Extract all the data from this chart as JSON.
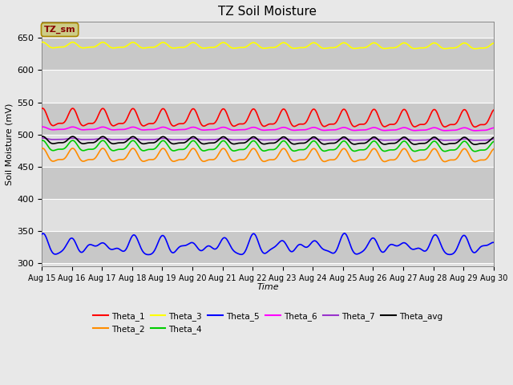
{
  "title": "TZ Soil Moisture",
  "xlabel": "Time",
  "ylabel": "Soil Moisture (mV)",
  "ylim": [
    295,
    675
  ],
  "yticks": [
    300,
    350,
    400,
    450,
    500,
    550,
    600,
    650
  ],
  "n_days": 15,
  "n_points": 1440,
  "background_color": "#e8e8e8",
  "plot_bg_color": "#d8d8d8",
  "band_color_light": "#e0e0e0",
  "band_color_dark": "#c8c8c8",
  "series": [
    {
      "name": "Theta_1",
      "color": "#ff0000",
      "base": 524,
      "amp": 12,
      "trend": -0.0015,
      "freq": 1.0,
      "phase": 1.5
    },
    {
      "name": "Theta_2",
      "color": "#ff8c00",
      "base": 466,
      "amp": 9,
      "trend": -0.0005,
      "freq": 1.0,
      "phase": 1.5
    },
    {
      "name": "Theta_3",
      "color": "#ffff00",
      "base": 638,
      "amp": 4,
      "trend": -0.001,
      "freq": 1.0,
      "phase": 1.5
    },
    {
      "name": "Theta_4",
      "color": "#00cc00",
      "base": 481,
      "amp": 7,
      "trend": -0.001,
      "freq": 1.0,
      "phase": 1.5
    },
    {
      "name": "Theta_5",
      "color": "#0000ff",
      "base": 326,
      "amp": 9,
      "trend": 0.0002,
      "freq": 1.0,
      "phase": 1.5
    },
    {
      "name": "Theta_6",
      "color": "#ff00ff",
      "base": 509,
      "amp": 2,
      "trend": -0.001,
      "freq": 1.0,
      "phase": 1.5
    },
    {
      "name": "Theta_7",
      "color": "#9933cc",
      "base": 493,
      "amp": 1,
      "trend": -0.001,
      "freq": 1.0,
      "phase": 1.5
    },
    {
      "name": "Theta_avg",
      "color": "#000000",
      "base": 490,
      "amp": 5,
      "trend": -0.001,
      "freq": 1.0,
      "phase": 1.5
    }
  ],
  "legend_box_color": "#cccc88",
  "legend_box_text": "TZ_sm",
  "legend_box_text_color": "#880000",
  "legend_box_edge_color": "#aa8800"
}
